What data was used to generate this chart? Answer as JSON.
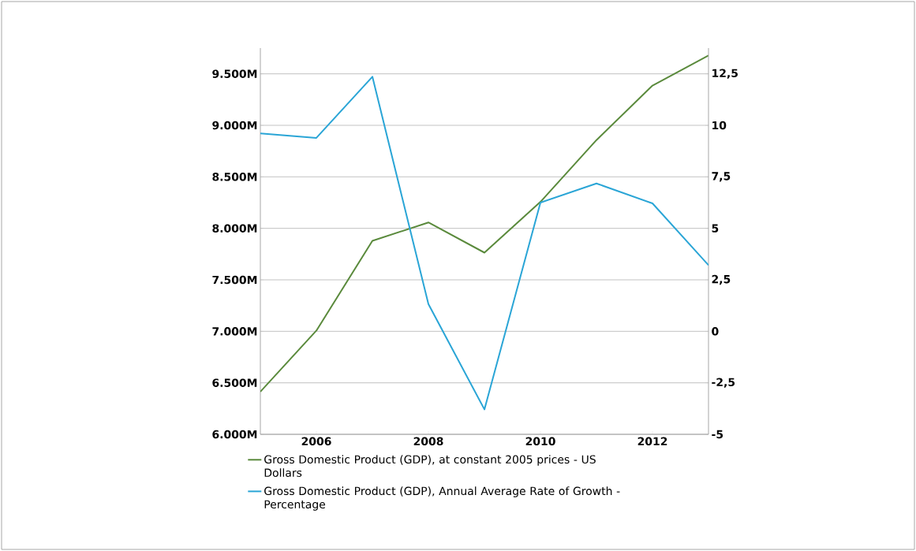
{
  "chart_data": {
    "type": "line",
    "x": [
      2005,
      2006,
      2007,
      2008,
      2009,
      2010,
      2011,
      2012,
      2013
    ],
    "series": [
      {
        "name": "Gross Domestic Product (GDP), at constant 2005 prices - US Dollars",
        "color": "#5a8a3c",
        "values": [
          6414,
          7007,
          7879,
          8057,
          7764,
          8257,
          8857,
          9386,
          9679
        ]
      },
      {
        "name": "Gross Domestic Product (GDP), Annual Average Rate of Growth - Percentage",
        "color": "#2aa5d6",
        "axis": "y2",
        "values": [
          9.61,
          9.39,
          12.36,
          1.32,
          -3.79,
          6.25,
          7.18,
          6.21,
          3.21
        ]
      }
    ],
    "xlim": [
      2005,
      2013
    ],
    "xticks": [
      2006,
      2008,
      2010,
      2012
    ],
    "ylim": [
      6000,
      9750
    ],
    "yticks": [
      {
        "value": 6000,
        "label": "6.000M"
      },
      {
        "value": 6500,
        "label": "6.500M"
      },
      {
        "value": 7000,
        "label": "7.000M"
      },
      {
        "value": 7500,
        "label": "7.500M"
      },
      {
        "value": 8000,
        "label": "8.000M"
      },
      {
        "value": 8500,
        "label": "8.500M"
      },
      {
        "value": 9000,
        "label": "9.000M"
      },
      {
        "value": 9500,
        "label": "9.500M"
      }
    ],
    "y2lim": [
      -5,
      13.75
    ],
    "y2ticks": [
      -5,
      {
        "value": -2.5,
        "label": "-2,5"
      },
      0,
      {
        "value": 2.5,
        "label": "2,5"
      },
      5,
      {
        "value": 7.5,
        "label": "7,5"
      },
      10,
      {
        "value": 12.5,
        "label": "12,5"
      }
    ],
    "grid": "y",
    "legend": "bottom",
    "marker": "none",
    "line_style": "solid"
  }
}
